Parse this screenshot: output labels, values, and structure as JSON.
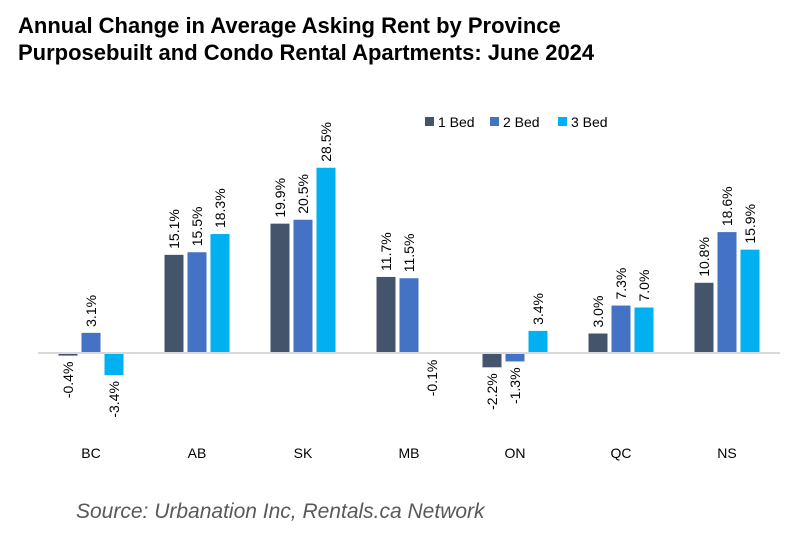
{
  "chart_data": {
    "type": "bar",
    "title": "Annual Change in Average Asking Rent by Province",
    "subtitle": "Purposebuilt and Condo Rental Apartments: June 2024",
    "categories": [
      "BC",
      "AB",
      "SK",
      "MB",
      "ON",
      "QC",
      "NS"
    ],
    "series": [
      {
        "name": "1 Bed",
        "color": "#44546a",
        "values": [
          -0.4,
          15.1,
          19.9,
          11.7,
          -2.2,
          3.0,
          10.8
        ],
        "labels": [
          "-0.4%",
          "15.1%",
          "19.9%",
          "11.7%",
          "-2.2%",
          "3.0%",
          "10.8%"
        ]
      },
      {
        "name": "2 Bed",
        "color": "#4472c4",
        "values": [
          3.1,
          15.5,
          20.5,
          11.5,
          -1.3,
          7.3,
          18.6
        ],
        "labels": [
          "3.1%",
          "15.5%",
          "20.5%",
          "11.5%",
          "-1.3%",
          "7.3%",
          "18.6%"
        ]
      },
      {
        "name": "3 Bed",
        "color": "#00b0f0",
        "values": [
          -3.4,
          18.3,
          28.5,
          -0.1,
          3.4,
          7.0,
          15.9
        ],
        "labels": [
          "-3.4%",
          "18.3%",
          "28.5%",
          "-0.1%",
          "3.4%",
          "7.0%",
          "15.9%"
        ]
      }
    ],
    "xlabel": "",
    "ylabel": "",
    "ylim": [
      -8,
      30
    ],
    "grid": false,
    "legend": "top-right"
  },
  "source": "Source: Urbanation Inc, Rentals.ca Network"
}
